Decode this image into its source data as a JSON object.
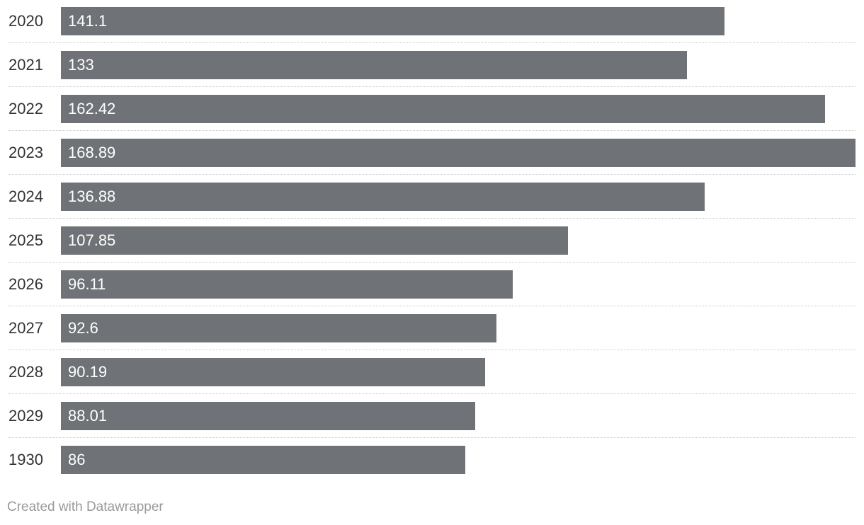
{
  "chart_data": {
    "type": "bar",
    "orientation": "horizontal",
    "categories": [
      "2020",
      "2021",
      "2022",
      "2023",
      "2024",
      "2025",
      "2026",
      "2027",
      "2028",
      "2029",
      "1930"
    ],
    "values": [
      141.1,
      133,
      162.42,
      168.89,
      136.88,
      107.85,
      96.11,
      92.6,
      90.19,
      88.01,
      86
    ],
    "value_labels": [
      "141.1",
      "133",
      "162.42",
      "168.89",
      "136.88",
      "107.85",
      "96.11",
      "92.6",
      "90.19",
      "88.01",
      "86"
    ],
    "bar_color": "#6f7276",
    "grid": false,
    "title": "",
    "xlabel": "",
    "ylabel": ""
  },
  "footer": {
    "credit": "Created with Datawrapper"
  }
}
